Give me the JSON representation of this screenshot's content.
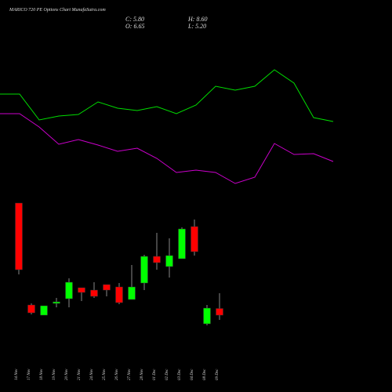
{
  "chart_data": [
    {
      "type": "candlestick",
      "title": "MARICO 720  PE Options  Chart MunafaSutra.com",
      "info": [
        "C: 5.80",
        "O: 6.65",
        "H: 8.60",
        "L: 5.20"
      ],
      "categories": [
        "14 Nov",
        "17 Nov",
        "18 Nov",
        "19 Nov",
        "20 Nov",
        "21 Nov",
        "24 Nov",
        "25 Nov",
        "26 Nov",
        "27 Nov",
        "28 Nov",
        "01 Dec",
        "02 Dec",
        "03 Dec",
        "04 Dec",
        "08 Dec",
        "09 Dec"
      ],
      "open": [
        20.1,
        7.1,
        5.8,
        7.3,
        7.9,
        9.3,
        9.0,
        9.7,
        9.4,
        7.8,
        9.9,
        13.3,
        12.0,
        13.0,
        17.1,
        4.7,
        6.65
      ],
      "high": [
        20.1,
        7.3,
        7.0,
        8.0,
        10.5,
        9.3,
        10.0,
        9.7,
        9.9,
        12.2,
        13.5,
        16.3,
        15.6,
        17.0,
        18.0,
        7.1,
        8.6
      ],
      "low": [
        11.0,
        5.9,
        5.8,
        6.8,
        6.8,
        7.6,
        8.0,
        8.2,
        7.2,
        7.8,
        9.0,
        11.6,
        10.6,
        13.0,
        13.4,
        4.5,
        5.2
      ],
      "close": [
        11.6,
        6.1,
        7.0,
        7.5,
        10.0,
        8.7,
        8.2,
        9.0,
        7.4,
        9.4,
        13.3,
        12.5,
        13.4,
        16.8,
        13.9,
        6.7,
        5.8
      ],
      "up_color": "#00ff00",
      "down_color": "#ff0000",
      "ylim": [
        -4,
        46
      ]
    },
    {
      "type": "line",
      "categories": [
        null,
        null,
        null,
        null,
        null,
        null,
        null,
        null,
        null,
        null,
        null,
        null,
        null,
        null,
        null,
        null,
        null,
        null
      ],
      "series": [
        {
          "color": "#00dd00",
          "values": [
            34.0,
            34.0,
            30.7,
            31.2,
            31.4,
            33.0,
            32.2,
            31.9,
            32.4,
            31.5,
            32.6,
            35.0,
            34.5,
            35.0,
            37.1,
            35.4,
            31.0,
            30.5
          ]
        },
        {
          "color": "#cc00cc",
          "values": [
            31.5,
            31.5,
            29.8,
            27.6,
            28.2,
            27.5,
            26.7,
            27.1,
            25.8,
            24.0,
            24.3,
            24.0,
            22.6,
            23.4,
            27.7,
            26.3,
            26.4,
            25.4
          ]
        }
      ],
      "ylim": [
        -4,
        46
      ]
    }
  ]
}
